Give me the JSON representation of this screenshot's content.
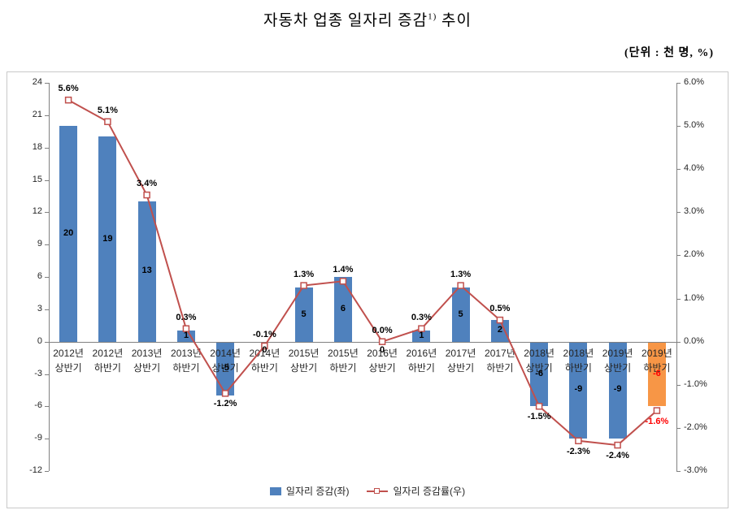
{
  "title": {
    "prefix": "자동차 업종 일자리 증감",
    "sup": "1)",
    "suffix": " 추이"
  },
  "unit_label": "(단위 : 천 명, %)",
  "chart_data": {
    "type": "bar+line",
    "categories": [
      "2012년 상반기",
      "2012년 하반기",
      "2013년 상반기",
      "2013년 하반기",
      "2014년 상반기",
      "2014년 하반기",
      "2015년 상반기",
      "2015년 하반기",
      "2016년 상반기",
      "2016년 하반기",
      "2017년 상반기",
      "2017년 하반기",
      "2018년 상반기",
      "2018년 하반기",
      "2019년 상반기",
      "2019년 하반기"
    ],
    "series": [
      {
        "name": "일자리 증감(좌)",
        "type": "bar",
        "axis": "left",
        "values": [
          20,
          19,
          13,
          1,
          -5,
          0,
          5,
          6,
          0,
          1,
          5,
          2,
          -6,
          -9,
          -9,
          -6
        ],
        "labels": [
          "20",
          "19",
          "13",
          "1",
          "-5",
          "0",
          "5",
          "6",
          "0",
          "1",
          "5",
          "2",
          "-6",
          "-9",
          "-9",
          "-6"
        ],
        "color": "#4F81BD",
        "color_overrides": {
          "15": "#F79646"
        },
        "label_color": "#000000",
        "label_color_overrides": {
          "15": "#FF0000"
        }
      },
      {
        "name": "일자리 증감률(우)",
        "type": "line",
        "axis": "right",
        "values": [
          5.6,
          5.1,
          3.4,
          0.3,
          -1.2,
          -0.1,
          1.3,
          1.4,
          0.0,
          0.3,
          1.3,
          0.5,
          -1.5,
          -2.3,
          -2.4,
          -1.6
        ],
        "labels": [
          "5.6%",
          "5.1%",
          "3.4%",
          "0.3%",
          "-1.2%",
          "-0.1%",
          "1.3%",
          "1.4%",
          "0.0%",
          "0.3%",
          "1.3%",
          "0.5%",
          "-1.5%",
          "-2.3%",
          "-2.4%",
          "-1.6%"
        ],
        "color": "#C0504D",
        "marker": "square-white",
        "label_color": "#000000",
        "label_color_overrides": {
          "15": "#FF0000"
        }
      }
    ],
    "left_axis": {
      "max": 24,
      "min": -12,
      "ticks": [
        24,
        21,
        18,
        15,
        12,
        9,
        6,
        3,
        0,
        -3,
        -6,
        -9,
        -12
      ]
    },
    "right_axis": {
      "max": 6,
      "min": -3,
      "tick_values": [
        6,
        5,
        4,
        3,
        2,
        1,
        0,
        -1,
        -2,
        -3
      ],
      "tick_labels": [
        "6.0%",
        "5.0%",
        "4.0%",
        "3.0%",
        "2.0%",
        "1.0%",
        "0.0%",
        "-1.0%",
        "-2.0%",
        "-3.0%"
      ]
    },
    "legend_position": "bottom",
    "grid": false
  }
}
